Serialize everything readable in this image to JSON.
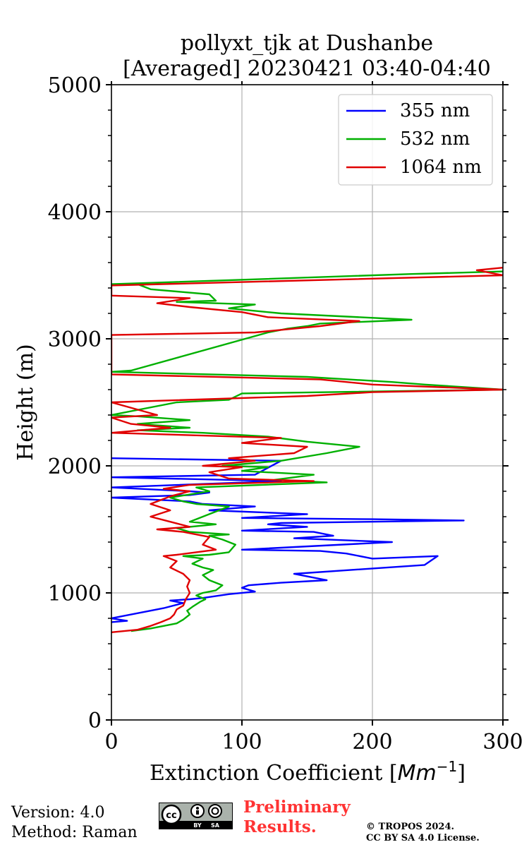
{
  "chart_data": {
    "type": "line",
    "title_line1": "pollyxt_tjk at Dushanbe",
    "title_line2": "[Averaged] 20230421 03:40-04:40",
    "xlabel_prefix": "Extinction Coefficient [",
    "xlabel_unit": "Mm",
    "xlabel_exp": "−1",
    "xlabel_suffix": "]",
    "ylabel": "Height (m)",
    "xlim": [
      0,
      300
    ],
    "ylim": [
      0,
      5000
    ],
    "x_ticks": [
      0,
      100,
      200,
      300
    ],
    "y_ticks": [
      0,
      1000,
      2000,
      3000,
      4000,
      5000
    ],
    "grid": true,
    "legend_position": "top-right",
    "series": [
      {
        "name": "355 nm",
        "color": "#0000ff",
        "points": [
          [
            0,
            770
          ],
          [
            12,
            780
          ],
          [
            0,
            800
          ],
          [
            30,
            860
          ],
          [
            40,
            880
          ],
          [
            55,
            920
          ],
          [
            45,
            940
          ],
          [
            60,
            950
          ],
          [
            70,
            960
          ],
          [
            90,
            990
          ],
          [
            110,
            1010
          ],
          [
            100,
            1040
          ],
          [
            105,
            1060
          ],
          [
            130,
            1080
          ],
          [
            165,
            1100
          ],
          [
            150,
            1130
          ],
          [
            140,
            1150
          ],
          [
            240,
            1220
          ],
          [
            250,
            1290
          ],
          [
            200,
            1270
          ],
          [
            180,
            1310
          ],
          [
            160,
            1330
          ],
          [
            100,
            1340
          ],
          [
            215,
            1400
          ],
          [
            140,
            1430
          ],
          [
            170,
            1450
          ],
          [
            155,
            1480
          ],
          [
            100,
            1490
          ],
          [
            150,
            1520
          ],
          [
            120,
            1540
          ],
          [
            130,
            1550
          ],
          [
            270,
            1570
          ],
          [
            200,
            1580
          ],
          [
            100,
            1590
          ],
          [
            150,
            1620
          ],
          [
            75,
            1650
          ],
          [
            110,
            1680
          ],
          [
            70,
            1700
          ],
          [
            60,
            1720
          ],
          [
            0,
            1750
          ],
          [
            60,
            1770
          ],
          [
            75,
            1790
          ],
          [
            60,
            1800
          ],
          [
            0,
            1830
          ],
          [
            130,
            1880
          ],
          [
            0,
            1910
          ],
          [
            110,
            1930
          ],
          [
            130,
            2040
          ],
          [
            0,
            2060
          ]
        ]
      },
      {
        "name": "532 nm",
        "color": "#00b000",
        "points": [
          [
            15,
            700
          ],
          [
            30,
            720
          ],
          [
            40,
            740
          ],
          [
            50,
            760
          ],
          [
            55,
            790
          ],
          [
            60,
            830
          ],
          [
            58,
            860
          ],
          [
            62,
            890
          ],
          [
            68,
            930
          ],
          [
            72,
            950
          ],
          [
            65,
            980
          ],
          [
            70,
            1000
          ],
          [
            80,
            1020
          ],
          [
            85,
            1060
          ],
          [
            75,
            1100
          ],
          [
            70,
            1140
          ],
          [
            78,
            1180
          ],
          [
            70,
            1200
          ],
          [
            62,
            1230
          ],
          [
            70,
            1270
          ],
          [
            55,
            1290
          ],
          [
            75,
            1300
          ],
          [
            90,
            1320
          ],
          [
            95,
            1380
          ],
          [
            85,
            1420
          ],
          [
            75,
            1450
          ],
          [
            90,
            1460
          ],
          [
            60,
            1480
          ],
          [
            50,
            1510
          ],
          [
            80,
            1540
          ],
          [
            60,
            1560
          ],
          [
            75,
            1620
          ],
          [
            90,
            1680
          ],
          [
            65,
            1700
          ],
          [
            55,
            1720
          ],
          [
            45,
            1750
          ],
          [
            75,
            1800
          ],
          [
            65,
            1830
          ],
          [
            165,
            1870
          ],
          [
            125,
            1890
          ],
          [
            155,
            1930
          ],
          [
            100,
            1960
          ],
          [
            120,
            1990
          ],
          [
            85,
            2000
          ],
          [
            130,
            2040
          ],
          [
            165,
            2100
          ],
          [
            190,
            2150
          ],
          [
            150,
            2190
          ],
          [
            120,
            2230
          ],
          [
            70,
            2260
          ],
          [
            20,
            2280
          ],
          [
            60,
            2300
          ],
          [
            20,
            2330
          ],
          [
            60,
            2360
          ],
          [
            20,
            2390
          ],
          [
            0,
            2400
          ],
          [
            50,
            2500
          ],
          [
            90,
            2520
          ],
          [
            100,
            2570
          ],
          [
            300,
            2600
          ],
          [
            240,
            2640
          ],
          [
            215,
            2660
          ],
          [
            150,
            2700
          ],
          [
            0,
            2740
          ],
          [
            15,
            2750
          ],
          [
            120,
            3050
          ],
          [
            135,
            3080
          ],
          [
            150,
            3100
          ],
          [
            160,
            3120
          ],
          [
            230,
            3150
          ],
          [
            130,
            3200
          ],
          [
            90,
            3240
          ],
          [
            110,
            3270
          ],
          [
            50,
            3290
          ],
          [
            80,
            3300
          ],
          [
            75,
            3350
          ],
          [
            30,
            3390
          ],
          [
            20,
            3430
          ],
          [
            0,
            3430
          ],
          [
            230,
            3510
          ],
          [
            300,
            3530
          ]
        ]
      },
      {
        "name": "1064 nm",
        "color": "#e00000",
        "points": [
          [
            0,
            690
          ],
          [
            20,
            710
          ],
          [
            30,
            740
          ],
          [
            38,
            770
          ],
          [
            45,
            800
          ],
          [
            48,
            830
          ],
          [
            50,
            870
          ],
          [
            55,
            900
          ],
          [
            57,
            950
          ],
          [
            60,
            1000
          ],
          [
            58,
            1050
          ],
          [
            60,
            1100
          ],
          [
            55,
            1150
          ],
          [
            45,
            1200
          ],
          [
            50,
            1250
          ],
          [
            40,
            1290
          ],
          [
            50,
            1300
          ],
          [
            80,
            1340
          ],
          [
            70,
            1380
          ],
          [
            75,
            1440
          ],
          [
            55,
            1480
          ],
          [
            35,
            1500
          ],
          [
            60,
            1520
          ],
          [
            45,
            1560
          ],
          [
            30,
            1600
          ],
          [
            45,
            1650
          ],
          [
            30,
            1700
          ],
          [
            45,
            1760
          ],
          [
            60,
            1800
          ],
          [
            40,
            1820
          ],
          [
            60,
            1850
          ],
          [
            155,
            1880
          ],
          [
            90,
            1900
          ],
          [
            75,
            1950
          ],
          [
            100,
            1990
          ],
          [
            70,
            2000
          ],
          [
            110,
            2040
          ],
          [
            90,
            2060
          ],
          [
            140,
            2100
          ],
          [
            150,
            2150
          ],
          [
            100,
            2180
          ],
          [
            130,
            2220
          ],
          [
            0,
            2260
          ],
          [
            45,
            2300
          ],
          [
            15,
            2330
          ],
          [
            0,
            2380
          ],
          [
            35,
            2400
          ],
          [
            0,
            2500
          ],
          [
            150,
            2550
          ],
          [
            200,
            2580
          ],
          [
            300,
            2600
          ],
          [
            200,
            2640
          ],
          [
            160,
            2680
          ],
          [
            0,
            2720
          ],
          [
            0,
            2750
          ],
          [
            0,
            3030
          ],
          [
            110,
            3050
          ],
          [
            160,
            3100
          ],
          [
            190,
            3140
          ],
          [
            120,
            3170
          ],
          [
            100,
            3210
          ],
          [
            60,
            3250
          ],
          [
            35,
            3280
          ],
          [
            60,
            3320
          ],
          [
            0,
            3340
          ],
          [
            0,
            3420
          ],
          [
            300,
            3500
          ],
          [
            280,
            3540
          ],
          [
            300,
            3560
          ]
        ]
      }
    ]
  },
  "footer": {
    "version": "Version: 4.0",
    "method": "Method: Raman",
    "preliminary_line1": "Preliminary",
    "preliminary_line2": "Results.",
    "copyright_line1": "© TROPOS 2024.",
    "copyright_line2": "CC BY SA 4.0 License.",
    "badge_cc": "cc",
    "badge_by": "BY",
    "badge_sa": "SA"
  }
}
